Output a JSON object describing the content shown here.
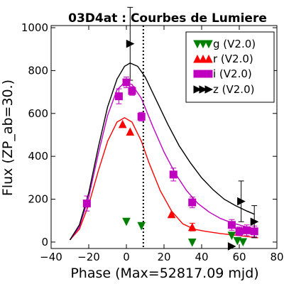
{
  "chart_data": {
    "type": "scatter",
    "title": "03D4at : Courbes de Lumiere",
    "xlabel": "Phase (Max=52817.09 mjd)",
    "ylabel": "Flux (ZP_ab=30.)",
    "xlim": [
      -40,
      80
    ],
    "ylim": [
      -30,
      1010
    ],
    "xticks": [
      -40,
      -20,
      0,
      20,
      40,
      60,
      80
    ],
    "xtick_labels": [
      "−40",
      "−20",
      "0",
      "20",
      "40",
      "60",
      "80"
    ],
    "yticks": [
      0,
      200,
      400,
      600,
      800,
      1000
    ],
    "ytick_labels": [
      "0",
      "200",
      "400",
      "600",
      "800",
      "1000"
    ],
    "vline_x": 9,
    "legend_position": "top-right",
    "series": [
      {
        "name": "g (V2.0)",
        "color": "#008000",
        "marker": "triangle-down",
        "points": [
          [
            0,
            95
          ],
          [
            8,
            75
          ],
          [
            35,
            -2
          ],
          [
            56,
            30
          ],
          [
            59,
            5
          ],
          [
            62,
            0
          ]
        ],
        "errors": [
          0,
          0,
          0,
          0,
          0,
          0
        ],
        "curve": []
      },
      {
        "name": "r (V2.0)",
        "color": "#ff0000",
        "marker": "triangle-up",
        "points": [
          [
            -2,
            550
          ],
          [
            2,
            515
          ],
          [
            24,
            130
          ],
          [
            35,
            70
          ]
        ],
        "errors": [
          0,
          0,
          0,
          18
        ],
        "curve": [
          [
            -30,
            10
          ],
          [
            -25,
            60
          ],
          [
            -20,
            175
          ],
          [
            -15,
            330
          ],
          [
            -10,
            470
          ],
          [
            -5,
            560
          ],
          [
            -1,
            580
          ],
          [
            3,
            560
          ],
          [
            8,
            470
          ],
          [
            12,
            370
          ],
          [
            18,
            240
          ],
          [
            24,
            145
          ],
          [
            30,
            85
          ],
          [
            36,
            60
          ],
          [
            42,
            50
          ],
          [
            50,
            40
          ],
          [
            58,
            32
          ],
          [
            65,
            25
          ],
          [
            70,
            20
          ]
        ]
      },
      {
        "name": "i (V2.0)",
        "color": "#bf00bf",
        "marker": "square",
        "points": [
          [
            -21,
            180
          ],
          [
            -4,
            680
          ],
          [
            0,
            745
          ],
          [
            3,
            705
          ],
          [
            8,
            585
          ],
          [
            25,
            315
          ],
          [
            35,
            185
          ],
          [
            56,
            80
          ],
          [
            60,
            50
          ],
          [
            64,
            55
          ],
          [
            68,
            50
          ]
        ],
        "errors": [
          35,
          35,
          25,
          20,
          20,
          30,
          25,
          25,
          20,
          25,
          25
        ],
        "curve": [
          [
            -30,
            10
          ],
          [
            -25,
            70
          ],
          [
            -20,
            210
          ],
          [
            -15,
            410
          ],
          [
            -10,
            590
          ],
          [
            -5,
            710
          ],
          [
            -1,
            745
          ],
          [
            3,
            735
          ],
          [
            8,
            670
          ],
          [
            14,
            540
          ],
          [
            20,
            420
          ],
          [
            26,
            320
          ],
          [
            32,
            240
          ],
          [
            38,
            180
          ],
          [
            44,
            140
          ],
          [
            50,
            110
          ],
          [
            56,
            90
          ],
          [
            62,
            75
          ],
          [
            68,
            62
          ],
          [
            70,
            58
          ]
        ]
      },
      {
        "name": "z (V2.0)",
        "color": "#000000",
        "marker": "triangle-right",
        "points": [
          [
            2,
            925
          ],
          [
            56,
            -20
          ],
          [
            61,
            190
          ],
          [
            68,
            95
          ]
        ],
        "errors": [
          170,
          0,
          95,
          75
        ],
        "curve": [
          [
            -30,
            10
          ],
          [
            -25,
            80
          ],
          [
            -20,
            230
          ],
          [
            -15,
            440
          ],
          [
            -10,
            630
          ],
          [
            -5,
            760
          ],
          [
            -1,
            820
          ],
          [
            2,
            835
          ],
          [
            6,
            820
          ],
          [
            10,
            770
          ],
          [
            16,
            660
          ],
          [
            22,
            550
          ],
          [
            28,
            450
          ],
          [
            34,
            370
          ],
          [
            40,
            300
          ],
          [
            46,
            245
          ],
          [
            52,
            200
          ],
          [
            58,
            170
          ],
          [
            64,
            145
          ],
          [
            68,
            130
          ]
        ]
      }
    ]
  }
}
